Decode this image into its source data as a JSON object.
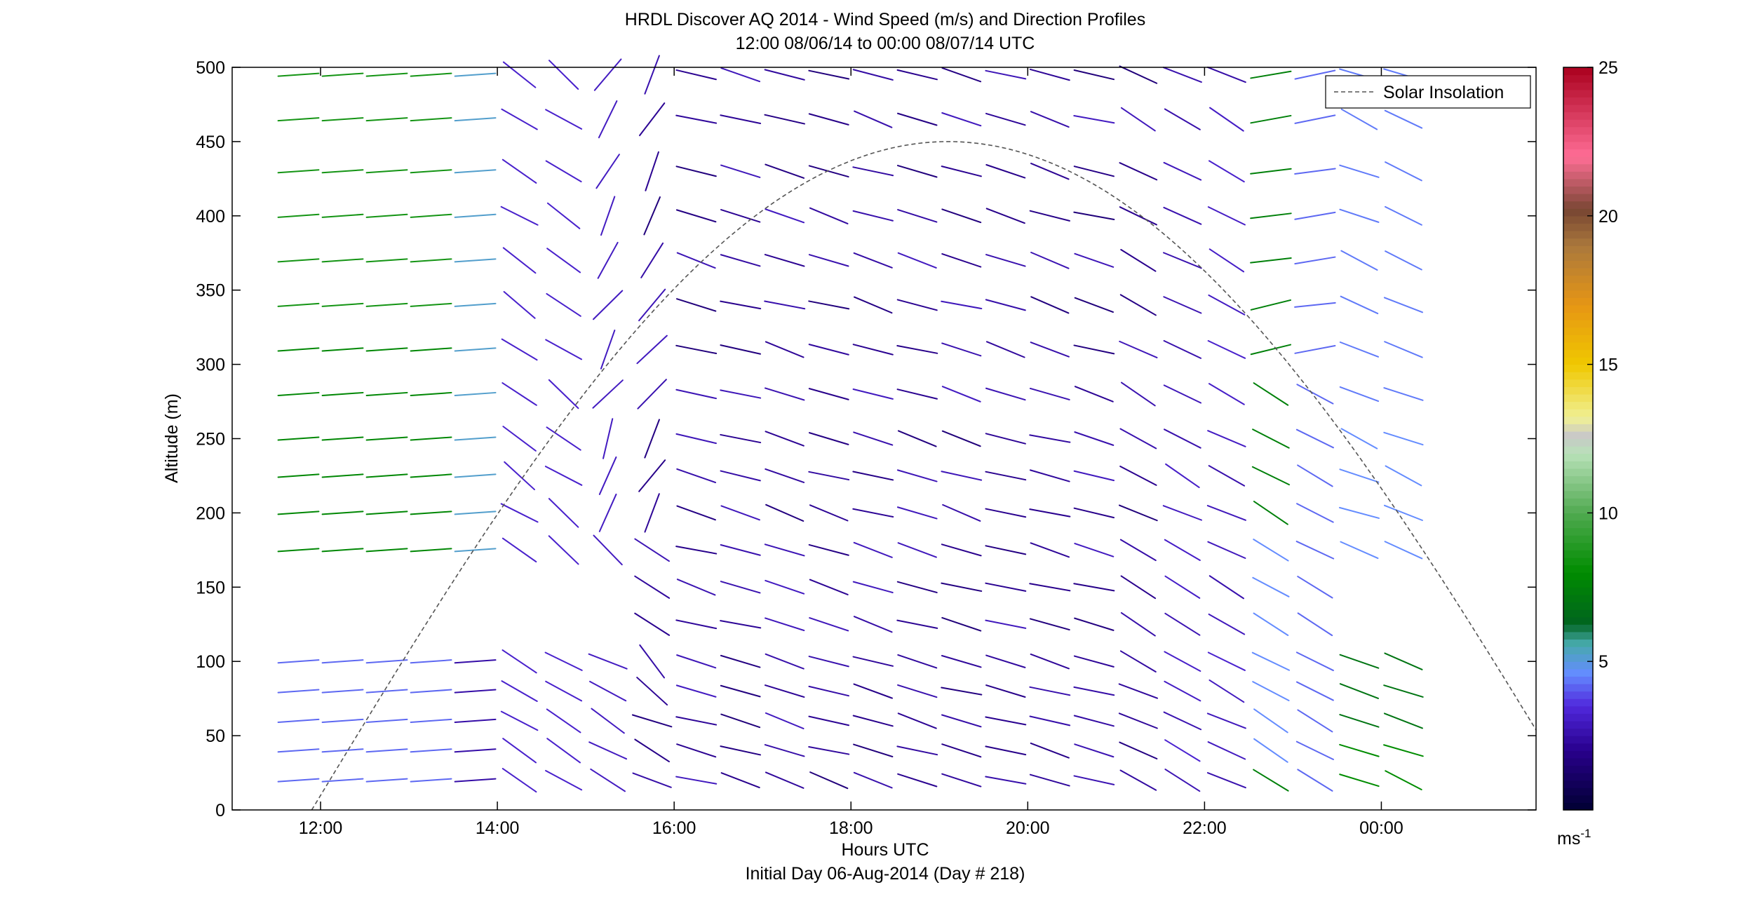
{
  "chart_data": {
    "type": "wind-barb-profile",
    "title": "HRDL Discover AQ 2014 - Wind Speed (m/s) and Direction Profiles",
    "subtitle": "12:00 08/06/14 to 00:00 08/07/14  UTC",
    "xlabel": "Hours UTC",
    "xlabel2": "Initial Day 06-Aug-2014 (Day # 218)",
    "ylabel": "Altitude (m)",
    "xlim_hours": [
      11.0,
      25.75
    ],
    "ylim": [
      0,
      500
    ],
    "x_ticks": [
      {
        "value": 12,
        "label": "12:00"
      },
      {
        "value": 14,
        "label": "14:00"
      },
      {
        "value": 16,
        "label": "16:00"
      },
      {
        "value": 18,
        "label": "18:00"
      },
      {
        "value": 20,
        "label": "20:00"
      },
      {
        "value": 22,
        "label": "22:00"
      },
      {
        "value": 24,
        "label": "00:00"
      }
    ],
    "y_ticks": [
      0,
      50,
      100,
      150,
      200,
      250,
      300,
      350,
      400,
      450,
      500
    ],
    "legend": {
      "label": "Solar Insolation",
      "position": "top-right"
    },
    "colorbar": {
      "min": 0,
      "max": 25,
      "ticks": [
        5,
        10,
        15,
        20,
        25
      ],
      "unit": "ms",
      "unit_exp": "-1"
    },
    "profile_times": [
      11.75,
      12.25,
      12.75,
      13.25,
      13.75,
      14.25,
      14.75,
      15.25,
      15.75,
      16.25,
      16.75,
      17.25,
      17.75,
      18.25,
      18.75,
      19.25,
      19.75,
      20.25,
      20.75,
      21.25,
      21.75,
      22.25,
      22.75,
      23.25,
      23.75,
      24.25
    ],
    "altitudes": [
      20,
      40,
      60,
      80,
      100,
      125,
      150,
      175,
      200,
      225,
      250,
      280,
      310,
      340,
      370,
      400,
      430,
      465,
      495
    ],
    "solar_insolation_peak_hour": 19.1,
    "solar_insolation_rise_hour": 11.9
  }
}
